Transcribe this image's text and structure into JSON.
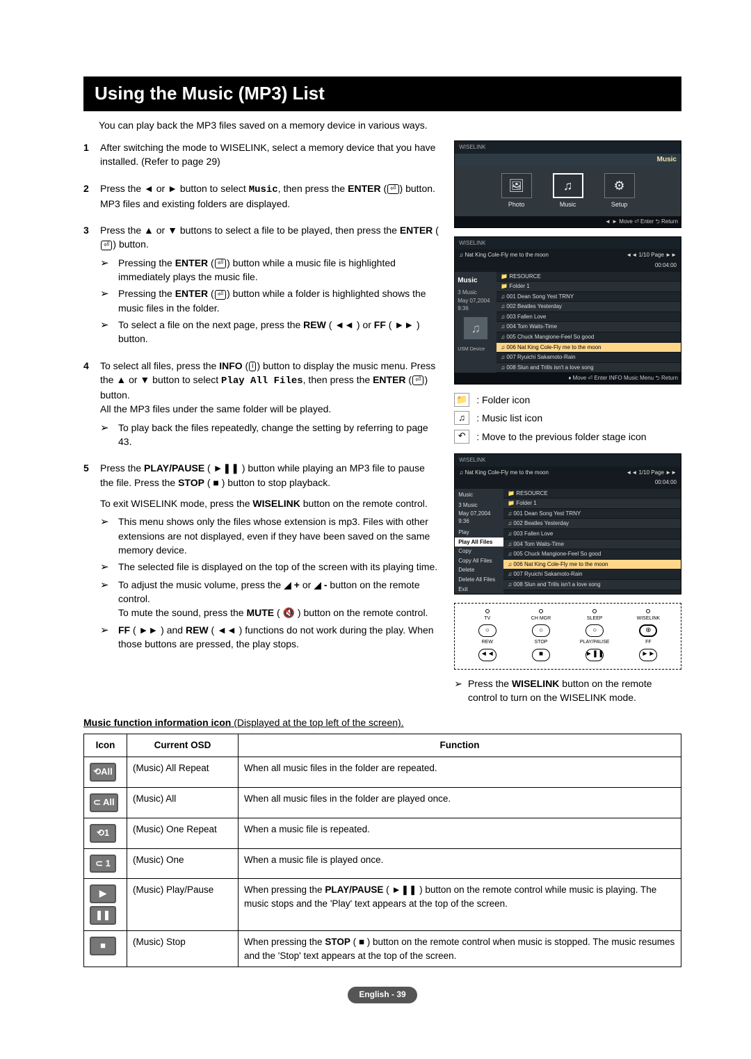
{
  "title": "Using the Music (MP3) List",
  "intro": "You can play back the MP3 files saved on a memory device in various ways.",
  "steps": {
    "s1": "After switching the mode to WISELINK, select a memory device that you have installed. (Refer to page 29)",
    "s2_a": "Press the ◄ or ► button to select ",
    "s2_b": ", then press the ",
    "s2_c": " button. MP3 files and existing folders are displayed.",
    "s3_a": "Press the ▲ or ▼ buttons to select a file to be played, then press the ",
    "s3_b": " button.",
    "s3_n1a": "Pressing the ",
    "s3_n1b": " button while a music file is highlighted immediately plays the music file.",
    "s3_n2a": "Pressing the ",
    "s3_n2b": " button while a folder is highlighted shows the music files in the folder.",
    "s3_n3a": "To select a file on the next page, press the ",
    "s3_n3b": " or ",
    "s3_n3c": " button.",
    "s4_a": "To select all files, press the ",
    "s4_b": " button to display the music menu. Press the ▲ or ▼ button to select ",
    "s4_c": ", then press the ",
    "s4_d": " button.",
    "s4_e": "All the MP3 files under the same folder will be played.",
    "s4_n1": "To play back the files repeatedly, change the setting by referring to page 43.",
    "s5_a": "Press the ",
    "s5_b": " button while playing an MP3 file to pause the file. Press the ",
    "s5_c": " button to stop playback.",
    "s5_exit": "To exit WISELINK mode, press the ",
    "s5_exit2": " button on the remote control.",
    "s5_n1": "This menu shows only the files whose extension is mp3. Files with other extensions are not displayed, even if they have been saved on the same memory device.",
    "s5_n2": "The selected file is displayed on the top of the screen with its playing time.",
    "s5_n3a": "To adjust the music volume, press the ",
    "s5_n3b": " or ",
    "s5_n3c": " button on the remote control.",
    "s5_n3d": "To mute the sound, press the ",
    "s5_n3e": " button on the remote control.",
    "s5_n4a": " and ",
    "s5_n4b": " functions do not work during the play. When those buttons are pressed, the play stops."
  },
  "labels": {
    "enter": "ENTER",
    "music": "Music",
    "rew": "REW",
    "ff": "FF",
    "info": "INFO",
    "playall": "Play All Files",
    "playpause": "PLAY/PAUSE",
    "stop": "STOP",
    "wiselink": "WISELINK",
    "mute": "MUTE"
  },
  "sidebar": {
    "screenshot1": {
      "music_label": "Music",
      "tiles": {
        "photo": "Photo",
        "music": "Music",
        "setup": "Setup"
      },
      "foot": "◄ ► Move   ⏎ Enter   ⮌ Return"
    },
    "screenshot2": {
      "title": "Music",
      "page": "◄◄ 1/10 Page ►►",
      "now": "Nat King Cole-Fly me to the moon",
      "time": "00:04:00",
      "side": "3 Music\nMay 07,2004\n9:36",
      "rows": [
        "RESOURCE",
        "Folder 1",
        "001  Dean Song Yest TRNY",
        "002  Beatles Yesterday",
        "003  Fallen Love",
        "004  Tom Waits-Time",
        "005  Chuck Mangione-Feel So good",
        "006  Nat King Cole-Fly me to the moon",
        "007  Ryuichi Sakamoto-Rain",
        "008  Slun and Trills isn't a love song"
      ],
      "foot": "♦ Move  ⏎ Enter  INFO Music Menu  ⮌ Return"
    },
    "legend": {
      "folder": ": Folder icon",
      "musiclist": ": Music list icon",
      "prev": ": Move to the previous folder stage icon"
    },
    "screenshot3": {
      "title": "Music",
      "page": "◄◄ 1/10 Page ►►",
      "now": "Nat King Cole-Fly me to the moon",
      "time": "00:04:00",
      "side_top": "3 Music\nMay 07,2004\n9:36",
      "menu": [
        "Play",
        "Play All Files",
        "Copy",
        "Copy All Files",
        "Delete",
        "Delete All Files",
        "Exit"
      ],
      "rows": [
        "RESOURCE",
        "Folder 1",
        "001  Dean Song Yest TRNY",
        "002  Beatles Yesterday",
        "003  Fallen Love",
        "004  Tom Waits-Time",
        "005  Chuck Mangione-Feel So good",
        "006  Nat King Cole-Fly me to the moon",
        "007  Ryuichi Sakamoto-Rain",
        "008  Slun and Trills isn't a love song"
      ]
    },
    "remote": {
      "row1": [
        "TV",
        "CH MGR",
        "SLEEP",
        "WISELINK"
      ],
      "row2": [
        "REW",
        "STOP",
        "PLAY/PAUSE",
        "FF"
      ]
    },
    "wiselink_note": "Press the WISELINK button on the remote control to turn on the WISELINK mode."
  },
  "table": {
    "caption_a": "Music function information icon",
    "caption_b": " (Displayed at the top left of the screen).",
    "headers": {
      "icon": "Icon",
      "osd": "Current OSD",
      "fn": "Function"
    },
    "rows": [
      {
        "icon": "⟲All",
        "osd": "(Music) All Repeat",
        "fn": "When all music files in the folder are repeated."
      },
      {
        "icon": "⊂ All",
        "osd": "(Music) All",
        "fn": "When all music files in the folder are played once."
      },
      {
        "icon": "⟲1",
        "osd": "(Music) One Repeat",
        "fn": "When a music file is repeated."
      },
      {
        "icon": "⊂ 1",
        "osd": "(Music) One",
        "fn": "When a music file is played once."
      },
      {
        "icon": "▶\n❚❚",
        "osd": "(Music) Play/Pause",
        "fn_a": "When pressing the ",
        "fn_b": " button on the remote control while music is playing. The music stops and the 'Play' text appears at the top of the screen."
      },
      {
        "icon": "■",
        "osd": "(Music) Stop",
        "fn_a": "When pressing the ",
        "fn_b": " button on the remote control when music is stopped. The music resumes and the 'Stop' text appears at the top of the screen."
      }
    ]
  },
  "footer": "English - 39",
  "colors": {
    "titlebar_bg": "#000000",
    "titlebar_fg": "#ffffff",
    "screenshot_bg": "#30383e",
    "icon_box_bg": "#777777"
  }
}
